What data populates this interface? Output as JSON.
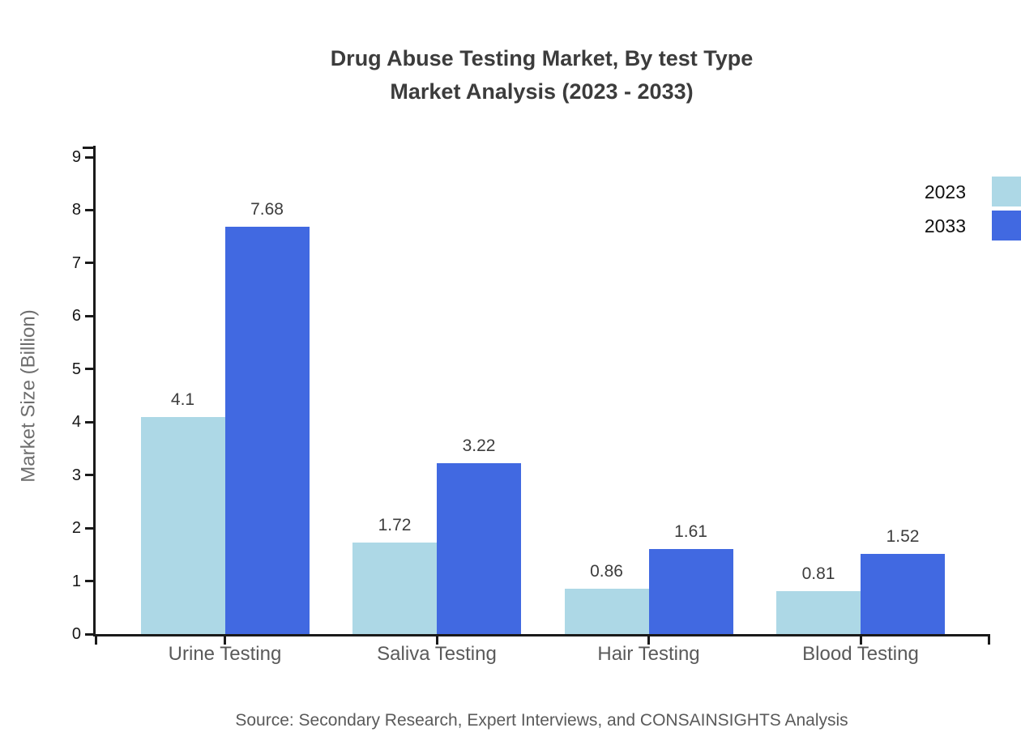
{
  "title": {
    "line1": "Drug Abuse Testing Market, By test Type",
    "line2": "Market Analysis (2023 - 2033)"
  },
  "source": "Source: Secondary Research, Expert Interviews, and CONSAINSIGHTS Analysis",
  "colors": {
    "series_2023": "#ADD8E6",
    "series_2033": "#4169E1",
    "axis": "#1a1a1a",
    "title_text": "#3c3c3c",
    "value_label_text": "#3d3d3d",
    "category_text": "#5a5a5a",
    "axis_title_text": "#6e6e6e",
    "background": "#ffffff"
  },
  "chart_data": {
    "type": "bar",
    "categories": [
      "Urine Testing",
      "Saliva Testing",
      "Hair Testing",
      "Blood Testing"
    ],
    "series": [
      {
        "name": "2023",
        "color": "#ADD8E6",
        "values": [
          4.1,
          1.72,
          0.86,
          0.81
        ]
      },
      {
        "name": "2033",
        "color": "#4169E1",
        "values": [
          7.68,
          3.22,
          1.61,
          1.52
        ]
      }
    ],
    "title": "Drug Abuse Testing Market, By test Type Market Analysis (2023 - 2033)",
    "xlabel": "",
    "ylabel": "Market Size (Billion)",
    "ylim": [
      0,
      9
    ],
    "yticks": [
      0,
      1,
      2,
      3,
      4,
      5,
      6,
      7,
      8,
      9
    ],
    "grid": false,
    "bar_value_labels": true,
    "legend_position": "top-right"
  }
}
